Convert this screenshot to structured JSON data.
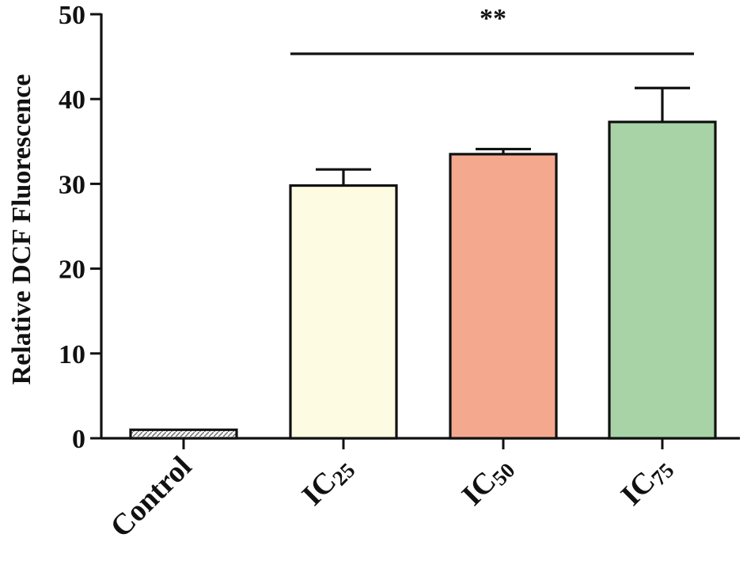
{
  "chart_data": {
    "type": "bar",
    "title": "",
    "xlabel": "",
    "ylabel": "Relative DCF Fluorescence",
    "ylim": [
      0,
      50
    ],
    "yticks": [
      0,
      10,
      20,
      30,
      40,
      50
    ],
    "categories": [
      {
        "main": "Control",
        "sub": ""
      },
      {
        "main": "IC",
        "sub": "25"
      },
      {
        "main": "IC",
        "sub": "50"
      },
      {
        "main": "IC",
        "sub": "75"
      }
    ],
    "values": [
      1,
      29.8,
      33.5,
      37.3
    ],
    "errors": [
      0,
      1.9,
      0.6,
      4.0
    ],
    "colors": [
      "#e8e8e8",
      "#fdfbe2",
      "#f4a98f",
      "#a7d3a6"
    ],
    "grid": false,
    "legend": "none",
    "significance": {
      "label": "**",
      "from_category": 1,
      "to_category": 3
    }
  }
}
